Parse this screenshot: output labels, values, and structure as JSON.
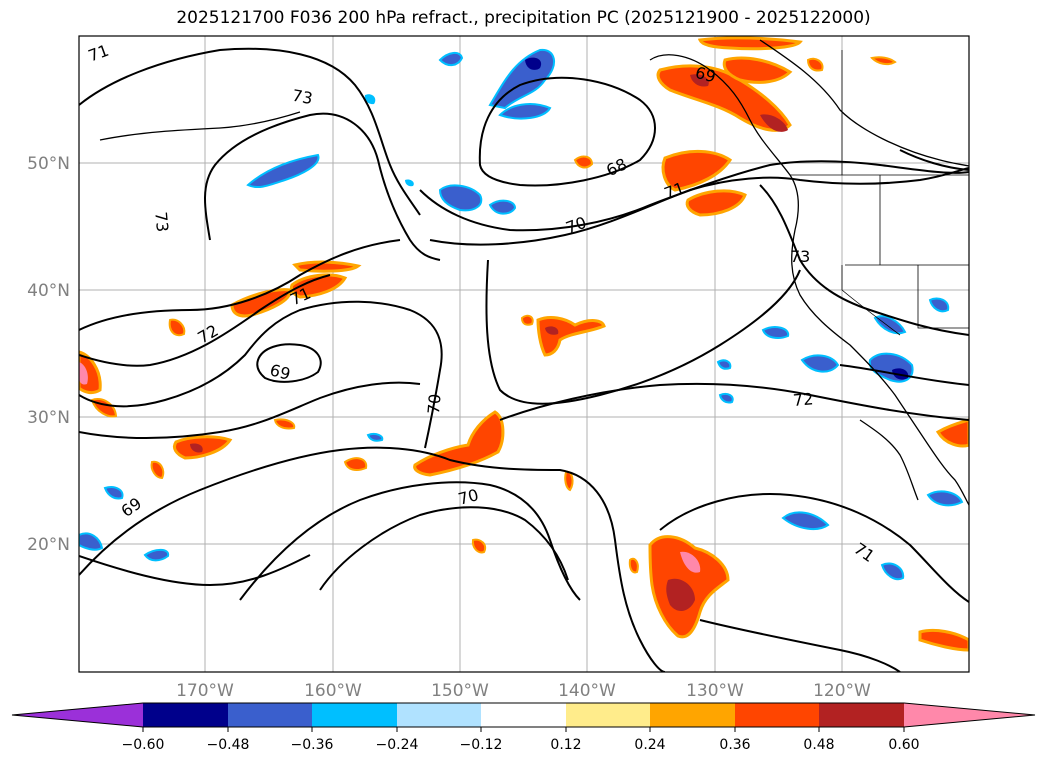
{
  "title": "2025121700 F036 200 hPa refract., precipitation PC (2025121900 - 2025122000)",
  "map": {
    "lat_labels": [
      "50°N",
      "40°N",
      "30°N",
      "20°N"
    ],
    "lon_labels": [
      "170°W",
      "160°W",
      "150°W",
      "140°W",
      "130°W",
      "120°W"
    ],
    "contour_labels": [
      "71",
      "73",
      "73",
      "69",
      "68",
      "70",
      "71",
      "72",
      "71",
      "69",
      "70",
      "72",
      "73",
      "69",
      "70",
      "71"
    ]
  },
  "colorbar": {
    "ticks": [
      "−0.60",
      "−0.48",
      "−0.36",
      "−0.24",
      "−0.12",
      "0.12",
      "0.24",
      "0.36",
      "0.48",
      "0.60"
    ],
    "colors": {
      "lt_minus_060": "#9b30d9",
      "m060_m048": "#00008b",
      "m048_m036": "#3a5fcd",
      "m036_m024": "#00bfff",
      "m024_m012": "#b0e2ff",
      "m012_p012": "#ffffff",
      "p012_p024": "#ffec8b",
      "p024_p036": "#ffa500",
      "p036_p048": "#ff4500",
      "p048_p060": "#b22222",
      "gt_060": "#ff88aa"
    }
  }
}
